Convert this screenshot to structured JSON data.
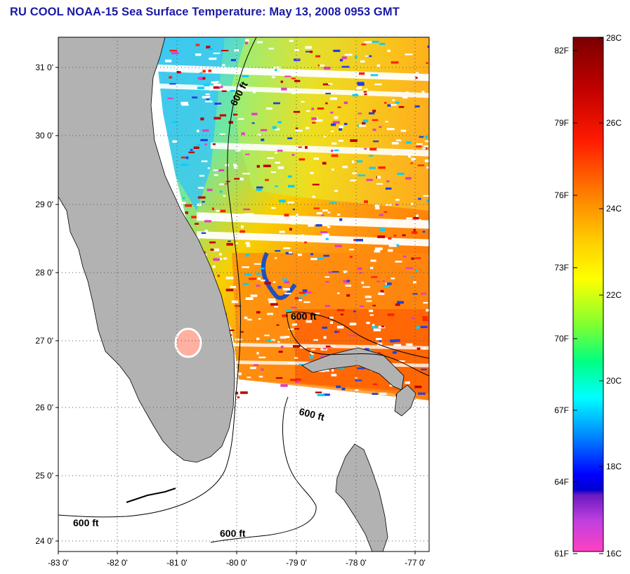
{
  "header": {
    "title": "RU COOL  NOAA-15  Sea Surface Temperature:  May 13, 2008 0953 GMT"
  },
  "map": {
    "lon_ticks": [
      "-83 0'",
      "-82 0'",
      "-81 0'",
      "-80 0'",
      "-79 0'",
      "-78 0'",
      "-77 0'"
    ],
    "lat_ticks": [
      "31 0'",
      "30 0'",
      "29 0'",
      "28 0'",
      "27 0'",
      "26 0'",
      "25 0'",
      "24 0'"
    ],
    "contour_labels": [
      "600 ft",
      "600 ft",
      "600 ft",
      "600 ft",
      "600 ft"
    ],
    "land_color": "#b2b2b2",
    "grid": true
  },
  "colorbar": {
    "fahrenheit_labels": [
      "82F",
      "79F",
      "76F",
      "73F",
      "70F",
      "67F",
      "64F",
      "61F"
    ],
    "celsius_labels": [
      "28C",
      "26C",
      "24C",
      "22C",
      "20C",
      "18C",
      "16C"
    ]
  }
}
